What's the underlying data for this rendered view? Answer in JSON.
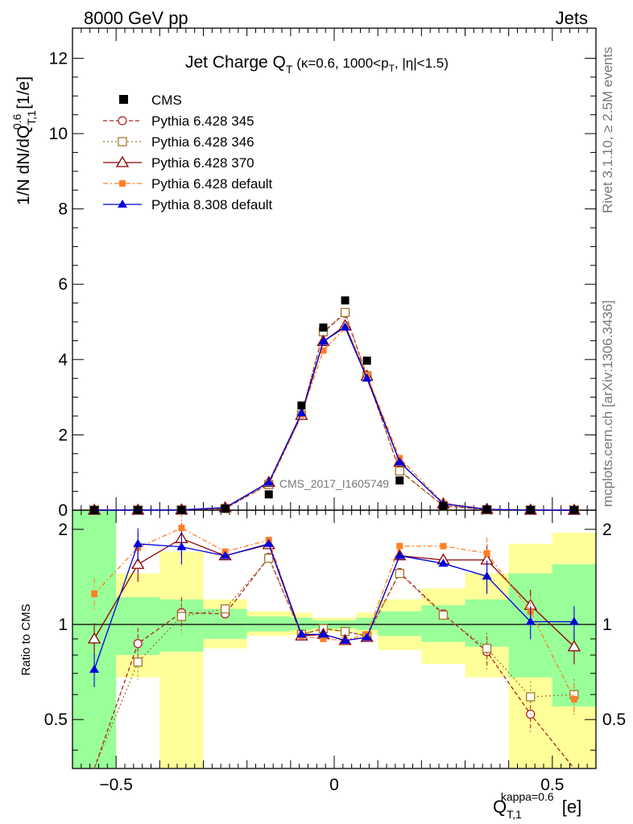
{
  "header": {
    "left": "8000 GeV pp",
    "right": "Jets",
    "side_top": "Rivet 3.1.10, ≥ 2.5M events",
    "side_bottom": "mcplots.cern.ch [arXiv:1306.3436]",
    "watermark": "CMS_2017_I1605749"
  },
  "main": {
    "title": "Jet Charge Q",
    "title_sub": "T",
    "title_rest": " (κ=0.6, 1000<p",
    "title_rest_sub": "T",
    "title_end": ", |η|<1.5)",
    "ylabel": "1/N dN/dQ",
    "ylabel_sup": "0.6",
    "ylabel_sub": "T,1",
    "ylabel_unit": " [1/e]",
    "yticks": [
      "0",
      "2",
      "4",
      "6",
      "8",
      "10",
      "12"
    ]
  },
  "ratio": {
    "ylabel": "Ratio to CMS",
    "yticks": [
      "0.5",
      "1",
      "2"
    ]
  },
  "xaxis": {
    "label": "Q",
    "label_sub": "T,1",
    "label_sup": "kappa=0.6",
    "unit": " [e]",
    "ticks": [
      "−0.5",
      "0",
      "0.5"
    ]
  },
  "chart_data": {
    "type": "line",
    "xlim": [
      -0.6,
      0.6
    ],
    "ylim": [
      0,
      12.8
    ],
    "ratio_ylim": [
      0.35,
      2.3
    ],
    "ratio_scale": "log",
    "x": [
      -0.55,
      -0.45,
      -0.35,
      -0.25,
      -0.15,
      -0.075,
      -0.025,
      0.025,
      0.075,
      0.15,
      0.25,
      0.35,
      0.45,
      0.55
    ],
    "bin_edges": [
      -0.6,
      -0.5,
      -0.4,
      -0.3,
      -0.2,
      -0.1,
      -0.05,
      0,
      0.05,
      0.1,
      0.2,
      0.3,
      0.4,
      0.5,
      0.6
    ],
    "data": {
      "name": "CMS",
      "values": [
        0.001,
        0.002,
        0.005,
        0.04,
        0.42,
        2.78,
        4.85,
        5.57,
        3.97,
        0.79,
        0.11,
        0.015,
        0.003,
        0.001
      ]
    },
    "band_inner": [
      [
        0.35,
        2.3
      ],
      [
        0.8,
        1.22
      ],
      [
        0.82,
        1.2
      ],
      [
        0.9,
        1.12
      ],
      [
        0.95,
        1.06
      ],
      [
        0.96,
        1.05
      ],
      [
        0.97,
        1.03
      ],
      [
        0.97,
        1.03
      ],
      [
        0.96,
        1.05
      ],
      [
        0.92,
        1.1
      ],
      [
        0.88,
        1.15
      ],
      [
        0.85,
        1.2
      ],
      [
        0.68,
        1.45
      ],
      [
        0.55,
        1.55
      ]
    ],
    "band_outer": [
      [
        0.35,
        2.3
      ],
      [
        0.68,
        1.45
      ],
      [
        0.35,
        1.7
      ],
      [
        0.84,
        1.2
      ],
      [
        0.92,
        1.1
      ],
      [
        0.93,
        1.09
      ],
      [
        0.95,
        1.05
      ],
      [
        0.95,
        1.05
      ],
      [
        0.93,
        1.09
      ],
      [
        0.83,
        1.2
      ],
      [
        0.75,
        1.3
      ],
      [
        0.68,
        1.45
      ],
      [
        0.35,
        1.8
      ],
      [
        0.35,
        1.95
      ]
    ],
    "series": [
      {
        "name": "Pythia 6.428 345",
        "color": "#b22222",
        "dash": "5,3",
        "marker": "circle-open",
        "values": [
          0.0003,
          0.0017,
          0.0055,
          0.043,
          0.69,
          2.52,
          4.72,
          5.23,
          3.55,
          1.05,
          0.12,
          0.012,
          0.0016,
          0.0003
        ],
        "ratio": [
          0.3,
          0.87,
          1.09,
          1.08,
          1.63,
          0.93,
          0.97,
          0.95,
          0.92,
          1.46,
          1.08,
          0.82,
          0.52,
          0.3
        ]
      },
      {
        "name": "Pythia 6.428 346",
        "color": "#a0772b",
        "dash": "2,3",
        "marker": "square-open",
        "values": [
          0.0004,
          0.0015,
          0.0052,
          0.045,
          0.68,
          2.53,
          4.74,
          5.25,
          3.57,
          1.04,
          0.12,
          0.013,
          0.0018,
          0.0006
        ],
        "ratio": [
          0.3,
          0.76,
          1.06,
          1.12,
          1.62,
          0.93,
          0.97,
          0.95,
          0.92,
          1.45,
          1.07,
          0.84,
          0.59,
          0.6
        ]
      },
      {
        "name": "Pythia 6.428 370",
        "color": "#8b0000",
        "dash": "",
        "marker": "triangle-open",
        "values": [
          0.0009,
          0.0031,
          0.0094,
          0.066,
          0.74,
          2.52,
          4.48,
          4.9,
          3.56,
          1.28,
          0.17,
          0.024,
          0.0034,
          0.0009
        ],
        "ratio": [
          0.9,
          1.55,
          1.87,
          1.65,
          1.79,
          0.92,
          0.93,
          0.89,
          0.91,
          1.65,
          1.6,
          1.6,
          1.15,
          0.85
        ]
      },
      {
        "name": "Pythia 6.428 default",
        "color": "#ff7f27",
        "dash": "6,3,2,3",
        "marker": "square-filled",
        "values": [
          0.0013,
          0.0035,
          0.01,
          0.068,
          0.74,
          2.54,
          4.24,
          4.84,
          3.59,
          1.38,
          0.19,
          0.025,
          0.0033,
          0.0006
        ],
        "ratio": [
          1.25,
          1.75,
          2.02,
          1.7,
          1.85,
          0.92,
          0.9,
          0.89,
          0.93,
          1.77,
          1.77,
          1.68,
          1.1,
          0.58
        ]
      },
      {
        "name": "Pythia 8.308 default",
        "color": "#0000dd",
        "dash": "",
        "marker": "triangle-filled",
        "values": [
          0.0007,
          0.0036,
          0.0089,
          0.065,
          0.74,
          2.58,
          4.48,
          4.86,
          3.5,
          1.28,
          0.17,
          0.022,
          0.003,
          0.001
        ],
        "ratio": [
          0.72,
          1.8,
          1.76,
          1.65,
          1.8,
          0.93,
          0.93,
          0.89,
          0.91,
          1.65,
          1.56,
          1.42,
          1.02,
          1.02
        ]
      }
    ]
  }
}
